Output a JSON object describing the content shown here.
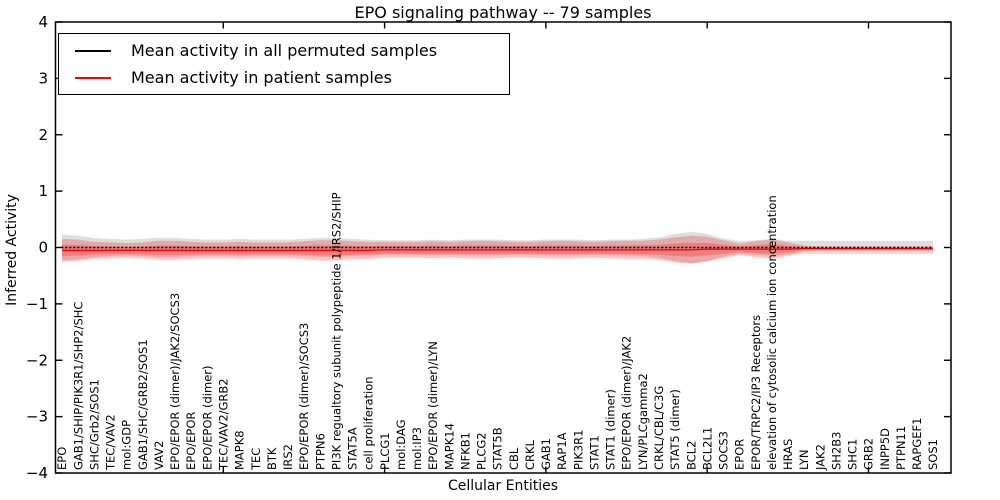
{
  "title": "EPO signaling pathway -- 79 samples",
  "legend": [
    {
      "label": "Mean activity in all permuted samples",
      "color": "#000000"
    },
    {
      "label": "Mean activity in patient samples",
      "color": "#ff0000"
    }
  ],
  "chart_data": {
    "type": "line",
    "title": "EPO signaling pathway -- 79 samples",
    "xlabel": "Cellular Entities",
    "ylabel": "Inferred Activity",
    "ylim": [
      -4,
      4
    ],
    "yticks": [
      4,
      3,
      2,
      1,
      0,
      -1,
      -2,
      -3,
      -4
    ],
    "grid": false,
    "legend_position": "upper left",
    "band_colors": {
      "permuted": "rgba(0,0,0,0.13)",
      "patient": "rgba(255,0,0,0.24)"
    },
    "categories": [
      "EPO",
      "GAB1/SHIP/PIK3R1/SHP2/SHC",
      "SHC/Grb2/SOS1",
      "TEC/VAV2",
      "mol:GDP",
      "GAB1/SHC/GRB2/SOS1",
      "VAV2",
      "EPO/EPOR (dimer)/JAK2/SOCS3",
      "EPO/EPOR",
      "EPO/EPOR (dimer)",
      "TEC/VAV2/GRB2",
      "MAPK8",
      "TEC",
      "BTK",
      "IRS2",
      "EPO/EPOR (dimer)/SOCS3",
      "PTPN6",
      "PI3K regualtory subunit polypeptide 1/IRS2/SHIP",
      "STAT5A",
      "cell proliferation",
      "PLCG1",
      "mol:DAG",
      "mol:IP3",
      "EPO/EPOR (dimer)/LYN",
      "MAPK14",
      "NFKB1",
      "PLCG2",
      "STAT5B",
      "CBL",
      "CRKL",
      "GAB1",
      "RAP1A",
      "PIK3R1",
      "STAT1",
      "STAT1 (dimer)",
      "EPO/EPOR (dimer)/JAK2",
      "LYN/PLCgamma2",
      "CRKL/CBL/C3G",
      "STAT5 (dimer)",
      "BCL2",
      "BCL2L1",
      "SOCS3",
      "EPOR",
      "EPOR/TRPC2/IP3 Receptors",
      "elevation of cytosolic calcium ion concentration",
      "HRAS",
      "LYN",
      "JAK2",
      "SH2B3",
      "SHC1",
      "GRB2",
      "INPP5D",
      "PTPN11",
      "RAPGEF1",
      "SOS1"
    ],
    "series": [
      {
        "name": "Mean activity in all permuted samples",
        "color": "#000000",
        "line_style": "dotted",
        "mean": [
          0,
          0,
          0,
          0,
          0,
          0,
          0,
          0,
          0,
          0,
          0,
          0,
          0,
          0,
          0,
          0,
          0,
          0,
          0,
          0,
          0,
          0,
          0,
          0,
          0,
          0,
          0,
          0,
          0,
          0,
          0,
          0,
          0,
          0,
          0,
          0,
          0,
          0,
          0,
          0,
          0,
          0,
          0,
          0,
          0,
          0,
          0,
          0,
          0,
          0,
          0,
          0,
          0,
          0,
          0
        ],
        "std": [
          0.23,
          0.21,
          0.17,
          0.15,
          0.14,
          0.15,
          0.17,
          0.17,
          0.15,
          0.14,
          0.14,
          0.15,
          0.14,
          0.14,
          0.14,
          0.15,
          0.17,
          0.17,
          0.15,
          0.14,
          0.13,
          0.13,
          0.13,
          0.14,
          0.13,
          0.14,
          0.14,
          0.14,
          0.13,
          0.13,
          0.14,
          0.14,
          0.14,
          0.13,
          0.14,
          0.14,
          0.15,
          0.18,
          0.24,
          0.28,
          0.24,
          0.16,
          0.11,
          0.13,
          0.15,
          0.12,
          0.12,
          0.12,
          0.12,
          0.12,
          0.12,
          0.12,
          0.12,
          0.12,
          0.12
        ]
      },
      {
        "name": "Mean activity in patient samples",
        "color": "#ff0000",
        "line_style": "solid",
        "mean": [
          -0.05,
          -0.05,
          -0.05,
          -0.05,
          -0.05,
          -0.05,
          -0.05,
          -0.05,
          -0.05,
          -0.05,
          -0.05,
          -0.05,
          -0.05,
          -0.05,
          -0.05,
          -0.05,
          -0.05,
          -0.05,
          -0.05,
          -0.05,
          -0.04,
          -0.04,
          -0.04,
          -0.04,
          -0.04,
          -0.04,
          -0.04,
          -0.04,
          -0.04,
          -0.04,
          -0.04,
          -0.04,
          -0.04,
          -0.04,
          -0.04,
          -0.04,
          -0.04,
          -0.04,
          -0.04,
          -0.04,
          -0.03,
          -0.03,
          -0.03,
          -0.03,
          -0.03,
          -0.03,
          -0.02,
          -0.02,
          -0.02,
          -0.02,
          -0.02,
          -0.02,
          -0.02,
          -0.02,
          -0.02
        ],
        "std": [
          0.2,
          0.19,
          0.15,
          0.14,
          0.13,
          0.14,
          0.17,
          0.17,
          0.15,
          0.14,
          0.14,
          0.15,
          0.14,
          0.14,
          0.14,
          0.16,
          0.18,
          0.18,
          0.16,
          0.15,
          0.14,
          0.14,
          0.14,
          0.15,
          0.14,
          0.15,
          0.16,
          0.15,
          0.14,
          0.14,
          0.15,
          0.16,
          0.15,
          0.14,
          0.15,
          0.16,
          0.16,
          0.18,
          0.22,
          0.25,
          0.22,
          0.16,
          0.1,
          0.14,
          0.17,
          0.12,
          0.05,
          0.04,
          0.04,
          0.04,
          0.04,
          0.04,
          0.04,
          0.04,
          0.04
        ]
      }
    ]
  }
}
